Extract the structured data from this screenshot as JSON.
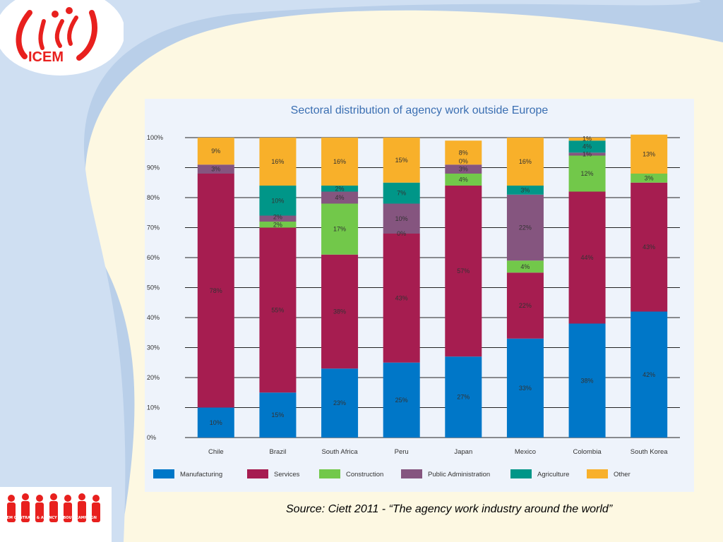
{
  "logo": {
    "text": "ICEM",
    "color": "#e8201e"
  },
  "campaign_logo": {
    "text": "ICEM CONTRACT & AGENCY LABOUR CAMPAIGN"
  },
  "source": "Source: Ciett 2011 - “The agency work industry around the world”",
  "chart_data": {
    "type": "bar",
    "stacked": true,
    "title": "Sectoral distribution of agency work outside Europe",
    "categories": [
      "Chile",
      "Brazil",
      "South Africa",
      "Peru",
      "Japan",
      "Mexico",
      "Colombia",
      "South Korea"
    ],
    "ylim": [
      0,
      100
    ],
    "yticks": [
      "0%",
      "10%",
      "20%",
      "30%",
      "40%",
      "50%",
      "60%",
      "70%",
      "80%",
      "90%",
      "100%"
    ],
    "grid": true,
    "legend_position": "bottom",
    "series": [
      {
        "name": "Manufacturing",
        "color": "#0077c8",
        "values": [
          10,
          15,
          23,
          25,
          27,
          33,
          38,
          42
        ],
        "labels": [
          "10%",
          "15%",
          "23%",
          "25%",
          "27%",
          "33%",
          "38%",
          "42%"
        ]
      },
      {
        "name": "Services",
        "color": "#a61d50",
        "values": [
          78,
          55,
          38,
          43,
          57,
          22,
          44,
          43
        ],
        "labels": [
          "78%",
          "55%",
          "38%",
          "43%",
          "57%",
          "22%",
          "44%",
          "43%"
        ]
      },
      {
        "name": "Construction",
        "color": "#72c84a",
        "values": [
          0,
          2,
          17,
          0,
          4,
          4,
          12,
          3
        ],
        "labels": [
          "",
          "2%",
          "17%",
          "",
          "4%",
          "4%",
          "12%",
          "3%"
        ]
      },
      {
        "name": "Public Administration",
        "color": "#85557f",
        "values": [
          3,
          2,
          4,
          10,
          3,
          22,
          1,
          0
        ],
        "labels": [
          "3%",
          "2%",
          "4%",
          "10%",
          "3%",
          "22%",
          "1%",
          ""
        ]
      },
      {
        "name": "Agriculture",
        "color": "#009688",
        "values": [
          0,
          10,
          2,
          7,
          0,
          3,
          4,
          0
        ],
        "labels": [
          "",
          "10%",
          "2%",
          "7%",
          "0%",
          "3%",
          "4%",
          ""
        ]
      },
      {
        "name": "Other",
        "color": "#f8b02a",
        "values": [
          9,
          16,
          16,
          15,
          8,
          16,
          1,
          13
        ],
        "labels": [
          "9%",
          "16%",
          "16%",
          "15%",
          "8%",
          "16%",
          "1%",
          "13%"
        ]
      }
    ],
    "extra_labels": [
      {
        "category": "Peru",
        "series": "Construction",
        "text": "0%"
      }
    ]
  }
}
